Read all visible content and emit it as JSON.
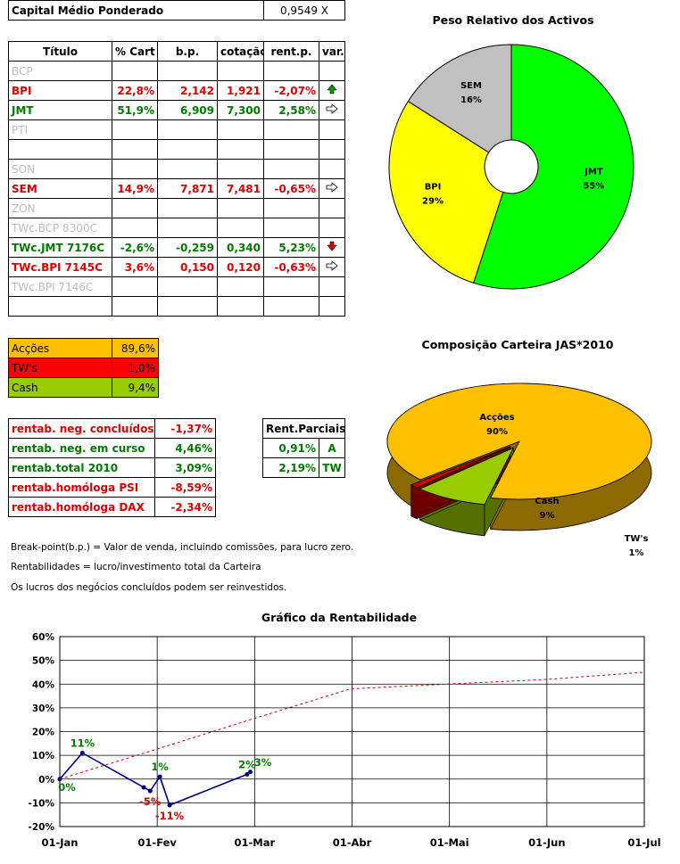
{
  "header": {
    "label": "Capital Médio Ponderado",
    "value": "0,9549 X"
  },
  "table": {
    "columns": [
      "Título",
      "% Cart",
      "b.p.",
      "cotação",
      "rent.p.",
      "var."
    ],
    "rows": [
      {
        "name": "BCP",
        "cart": "",
        "bp": "",
        "cot": "",
        "rent": "",
        "var": "",
        "style": "grey"
      },
      {
        "name": "BPI",
        "cart": "22,8%",
        "bp": "2,142",
        "cot": "1,921",
        "rent": "-2,07%",
        "var": "up",
        "style": "red"
      },
      {
        "name": "JMT",
        "cart": "51,9%",
        "bp": "6,909",
        "cot": "7,300",
        "rent": "2,58%",
        "var": "right",
        "style": "green"
      },
      {
        "name": "PTI",
        "cart": "",
        "bp": "",
        "cot": "",
        "rent": "",
        "var": "",
        "style": "grey"
      },
      {
        "name": "",
        "cart": "",
        "bp": "",
        "cot": "",
        "rent": "",
        "var": "",
        "style": "grey"
      },
      {
        "name": "SON",
        "cart": "",
        "bp": "",
        "cot": "",
        "rent": "",
        "var": "",
        "style": "grey"
      },
      {
        "name": "SEM",
        "cart": "14,9%",
        "bp": "7,871",
        "cot": "7,481",
        "rent": "-0,65%",
        "var": "right",
        "style": "red"
      },
      {
        "name": "ZON",
        "cart": "",
        "bp": "",
        "cot": "",
        "rent": "",
        "var": "",
        "style": "grey"
      },
      {
        "name": "TWc.BCP 8300C",
        "cart": "",
        "bp": "",
        "cot": "",
        "rent": "",
        "var": "",
        "style": "grey"
      },
      {
        "name": "TWc.JMT 7176C",
        "cart": "-2,6%",
        "bp": "-0,259",
        "cot": "0,340",
        "rent": "5,23%",
        "var": "down",
        "style": "green"
      },
      {
        "name": "TWc.BPI 7145C",
        "cart": "3,6%",
        "bp": "0,150",
        "cot": "0,120",
        "rent": "-0,63%",
        "var": "right",
        "style": "red"
      },
      {
        "name": "TWc.BPI 7146C",
        "cart": "",
        "bp": "",
        "cot": "",
        "rent": "",
        "var": "",
        "style": "grey"
      },
      {
        "name": "",
        "cart": "",
        "bp": "",
        "cot": "",
        "rent": "",
        "var": "",
        "style": "grey"
      }
    ]
  },
  "composition": [
    {
      "label": "Acções",
      "value": "89,6%",
      "bg": "#ffc000"
    },
    {
      "label": "TW's",
      "value": "1,0%",
      "bg": "#ff0000"
    },
    {
      "label": "Cash",
      "value": "9,4%",
      "bg": "#99cc00"
    }
  ],
  "rentab": [
    {
      "label": "rentab. neg. concluídos",
      "value": "-1,37%",
      "style": "red"
    },
    {
      "label": "rentab. neg. em curso",
      "value": "4,46%",
      "style": "green"
    },
    {
      "label": "rentab.total 2010",
      "value": "3,09%",
      "style": "green"
    },
    {
      "label": "rentab.homóloga PSI",
      "value": "-8,59%",
      "style": "red"
    },
    {
      "label": "rentab.homóloga DAX",
      "value": "-2,34%",
      "style": "red"
    }
  ],
  "parciais": {
    "title": "Rent.Parciais",
    "rows": [
      {
        "value": "0,91%",
        "code": "A"
      },
      {
        "value": "2,19%",
        "code": "TW"
      }
    ]
  },
  "notes": [
    "Break-point(b.p.) = Valor de venda, incluindo comissões, para lucro zero.",
    "Rentabilidades = lucro/investimento total da Carteira",
    "Os lucros dos negócios concluídos podem ser reinvestidos."
  ],
  "chart_data": [
    {
      "type": "pie",
      "title": "Peso Relativo dos Activos",
      "donut": true,
      "slices": [
        {
          "label": "JMT",
          "value": 55,
          "text": "55%",
          "color": "#00ff00"
        },
        {
          "label": "BPI",
          "value": 29,
          "text": "29%",
          "color": "#ffff00"
        },
        {
          "label": "SEM",
          "value": 16,
          "text": "16%",
          "color": "#c0c0c0"
        }
      ]
    },
    {
      "type": "pie",
      "title": "Composição Carteira JAS*2010",
      "three_d": true,
      "slices": [
        {
          "label": "Acções",
          "value": 90,
          "text": "90%",
          "color": "#ffc000"
        },
        {
          "label": "Cash",
          "value": 9,
          "text": "9%",
          "color": "#99cc00"
        },
        {
          "label": "TW's",
          "value": 1,
          "text": "1%",
          "color": "#cc0000"
        }
      ]
    },
    {
      "type": "line",
      "title": "Gráfico da Rentabilidade",
      "x_tick_labels": [
        "01-Jan",
        "01-Fev",
        "01-Mar",
        "01-Abr",
        "01-Mai",
        "01-Jun",
        "01-Jul"
      ],
      "y_tick_labels": [
        "60%",
        "50%",
        "40%",
        "30%",
        "20%",
        "10%",
        "0%",
        "-10%",
        "-20%"
      ],
      "ylim": [
        -20,
        60
      ],
      "xlim": [
        "2010-01-01",
        "2010-07-01"
      ],
      "grid": true,
      "series": [
        {
          "color": "#000080",
          "points": [
            {
              "x": "2010-01-01",
              "y": 0,
              "label": "0%"
            },
            {
              "x": "2010-01-08",
              "y": 11,
              "label": "11%"
            },
            {
              "x": "2010-01-27",
              "y": -3.5,
              "label": ""
            },
            {
              "x": "2010-01-29",
              "y": -5,
              "label": "-5%"
            },
            {
              "x": "2010-02-01",
              "y": 1,
              "label": "1%"
            },
            {
              "x": "2010-02-04",
              "y": -11,
              "label": "-11%"
            },
            {
              "x": "2010-02-28",
              "y": 2,
              "label": "2%"
            },
            {
              "x": "2010-03-01",
              "y": 3,
              "label": "3%"
            }
          ]
        },
        {
          "color": "#cc0000",
          "dashed": true,
          "points": [
            {
              "x": "2010-01-01",
              "y": 0
            },
            {
              "x": "2010-02-01",
              "y": 13
            },
            {
              "x": "2010-03-01",
              "y": 25
            },
            {
              "x": "2010-04-01",
              "y": 38
            },
            {
              "x": "2010-05-01",
              "y": 40
            },
            {
              "x": "2010-06-01",
              "y": 42
            },
            {
              "x": "2010-07-01",
              "y": 45
            }
          ]
        }
      ]
    }
  ]
}
